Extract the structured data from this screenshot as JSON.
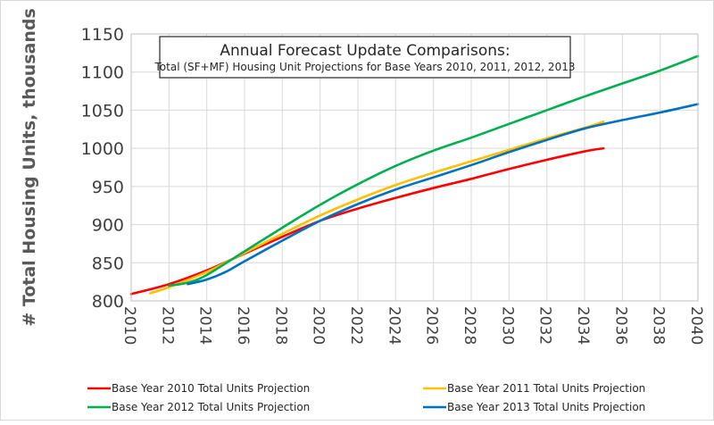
{
  "chart_data": {
    "type": "line",
    "title": "Annual Forecast Update Comparisons:",
    "subtitle": "Total (SF+MF) Housing Unit Projections for Base Years 2010, 2011, 2012, 2013",
    "xlabel": "",
    "ylabel": "# Total Housing Units, thousands",
    "xlim": [
      2010,
      2040
    ],
    "ylim": [
      800,
      1150
    ],
    "x_ticks": [
      "2010",
      "2012",
      "2014",
      "2016",
      "2018",
      "2020",
      "2022",
      "2024",
      "2026",
      "2028",
      "2030",
      "2032",
      "2034",
      "2036",
      "2038",
      "2040"
    ],
    "y_ticks": [
      "800",
      "850",
      "900",
      "950",
      "1000",
      "1050",
      "1100",
      "1150"
    ],
    "grid": true,
    "legend_position": "bottom",
    "series": [
      {
        "name": "Base Year 2010 Total Units Projection",
        "color": "#ff0000",
        "x": [
          2010,
          2012,
          2014,
          2016,
          2018,
          2020,
          2022,
          2024,
          2026,
          2028,
          2030,
          2032,
          2034,
          2035
        ],
        "y": [
          809,
          822,
          840,
          862,
          884,
          905,
          921,
          935,
          948,
          960,
          973,
          985,
          996,
          1000
        ]
      },
      {
        "name": "Base Year 2011 Total Units Projection",
        "color": "#ffc000",
        "x": [
          2011,
          2012,
          2014,
          2016,
          2018,
          2020,
          2022,
          2024,
          2026,
          2028,
          2030,
          2032,
          2034,
          2035
        ],
        "y": [
          810,
          818,
          838,
          863,
          888,
          912,
          933,
          952,
          968,
          983,
          998,
          1013,
          1027,
          1035
        ]
      },
      {
        "name": "Base Year 2012 Total Units Projection",
        "color": "#00b050",
        "x": [
          2012,
          2013,
          2014,
          2016,
          2018,
          2020,
          2022,
          2024,
          2026,
          2028,
          2030,
          2032,
          2034,
          2036,
          2038,
          2040
        ],
        "y": [
          820,
          824,
          834,
          865,
          896,
          926,
          953,
          977,
          997,
          1014,
          1032,
          1050,
          1068,
          1085,
          1102,
          1121
        ]
      },
      {
        "name": "Base Year 2013 Total Units Projection",
        "color": "#0070c0",
        "x": [
          2013,
          2014,
          2015,
          2016,
          2018,
          2020,
          2022,
          2024,
          2026,
          2028,
          2030,
          2032,
          2034,
          2036,
          2038,
          2040
        ],
        "y": [
          822,
          828,
          838,
          852,
          879,
          905,
          927,
          946,
          962,
          978,
          995,
          1011,
          1026,
          1037,
          1047,
          1058
        ]
      }
    ]
  }
}
